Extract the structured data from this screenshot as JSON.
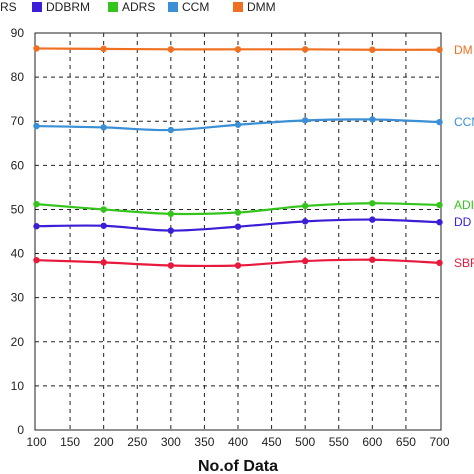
{
  "chart_data": {
    "type": "line",
    "xlabel": "No.of Data",
    "ylabel": "",
    "x": [
      100,
      200,
      300,
      400,
      500,
      600,
      700
    ],
    "xticks": [
      100,
      150,
      200,
      250,
      300,
      350,
      400,
      450,
      500,
      550,
      600,
      650,
      700
    ],
    "xlim": [
      100,
      700
    ],
    "ylim": [
      0,
      90
    ],
    "yticks": [
      0,
      10,
      20,
      30,
      40,
      50,
      60,
      70,
      80,
      90
    ],
    "grid": true,
    "legend_position": "top",
    "legend_entries": [
      "BRS",
      "DDBRM",
      "ADRS",
      "CCM",
      "DMM"
    ],
    "series": [
      {
        "name": "SBRS",
        "legend_label": "BRS",
        "end_label": "SBR",
        "color": "#e8193c",
        "values": [
          38.5,
          38.0,
          37.3,
          37.3,
          38.3,
          38.6,
          37.9
        ]
      },
      {
        "name": "DDBRM",
        "legend_label": "DDBRM",
        "end_label": "DD",
        "color": "#3a1fd6",
        "values": [
          46.2,
          46.3,
          45.2,
          46.1,
          47.3,
          47.7,
          47.1
        ]
      },
      {
        "name": "ADRS",
        "legend_label": "ADRS",
        "end_label": "ADI",
        "color": "#35c41c",
        "values": [
          51.2,
          50.0,
          49.0,
          49.3,
          50.8,
          51.4,
          51.0
        ]
      },
      {
        "name": "CCM",
        "legend_label": "CCM",
        "end_label": "CCM",
        "color": "#3a8fd6",
        "values": [
          68.9,
          68.6,
          68.0,
          69.2,
          70.2,
          70.4,
          69.8
        ]
      },
      {
        "name": "DMM",
        "legend_label": "DMM",
        "end_label": "DM",
        "color": "#f07022",
        "values": [
          86.5,
          86.4,
          86.3,
          86.3,
          86.3,
          86.2,
          86.2
        ]
      }
    ]
  }
}
